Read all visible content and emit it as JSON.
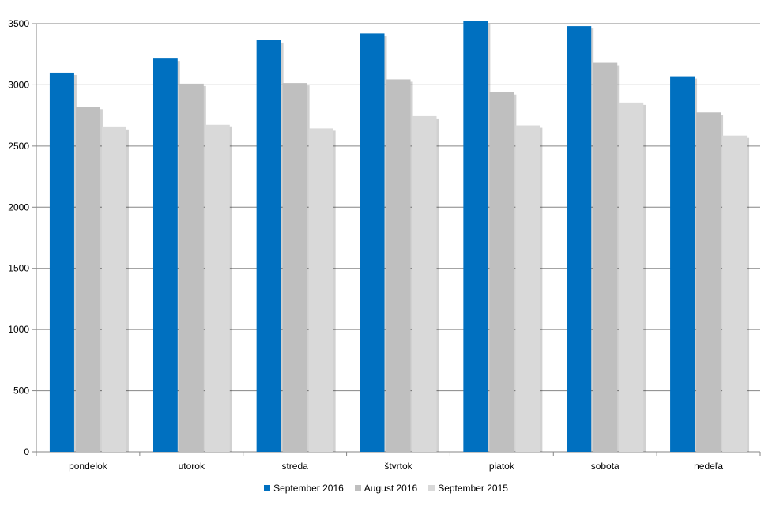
{
  "chart_data": {
    "type": "bar",
    "title": "",
    "xlabel": "",
    "ylabel": "",
    "categories": [
      "pondelok",
      "utorok",
      "streda",
      "štvrtok",
      "piatok",
      "sobota",
      "nedeľa"
    ],
    "series": [
      {
        "name": "September 2016",
        "color": "#0070C0",
        "values": [
          3100,
          3215,
          3365,
          3420,
          3520,
          3480,
          3070
        ]
      },
      {
        "name": "August 2016",
        "color": "#BFBFBF",
        "values": [
          2820,
          3010,
          3015,
          3045,
          2940,
          3180,
          2775
        ]
      },
      {
        "name": "September 2015",
        "color": "#D9D9D9",
        "values": [
          2655,
          2675,
          2645,
          2745,
          2670,
          2855,
          2585
        ]
      }
    ],
    "ylim": [
      0,
      3500
    ],
    "yticks": [
      0,
      500,
      1000,
      1500,
      2000,
      2500,
      3000,
      3500
    ],
    "grid": true,
    "legend_position": "bottom"
  }
}
